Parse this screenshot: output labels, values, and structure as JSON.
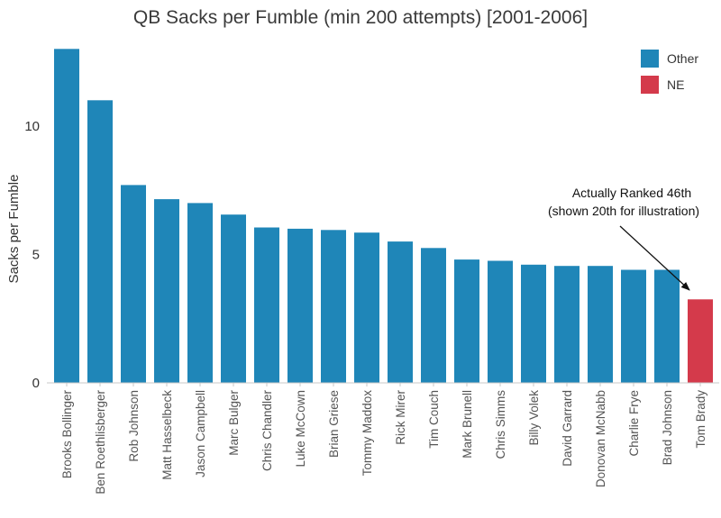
{
  "chart_data": {
    "type": "bar",
    "title": "QB Sacks per Fumble (min 200 attempts) [2001-2006]",
    "xlabel": "",
    "ylabel": "Sacks per Fumble",
    "ylim": [
      0,
      13.5
    ],
    "yticks": [
      0,
      5,
      10
    ],
    "categories": [
      "Brooks Bollinger",
      "Ben Roethlisberger",
      "Rob Johnson",
      "Matt Hasselbeck",
      "Jason Campbell",
      "Marc Bulger",
      "Chris Chandler",
      "Luke McCown",
      "Brian Griese",
      "Tommy Maddox",
      "Rick Mirer",
      "Tim Couch",
      "Mark Brunell",
      "Chris Simms",
      "Billy Volek",
      "David Garrard",
      "Donovan McNabb",
      "Charlie Frye",
      "Brad Johnson",
      "Tom Brady"
    ],
    "values": [
      13.0,
      11.0,
      7.7,
      7.15,
      7.0,
      6.55,
      6.05,
      6.0,
      5.95,
      5.85,
      5.5,
      5.25,
      4.8,
      4.75,
      4.6,
      4.55,
      4.55,
      4.4,
      4.4,
      3.25
    ],
    "groups": [
      "Other",
      "Other",
      "Other",
      "Other",
      "Other",
      "Other",
      "Other",
      "Other",
      "Other",
      "Other",
      "Other",
      "Other",
      "Other",
      "Other",
      "Other",
      "Other",
      "Other",
      "Other",
      "Other",
      "NE"
    ],
    "legend": {
      "placement": "top-right",
      "entries": [
        {
          "name": "Other",
          "color": "#1f86b8"
        },
        {
          "name": "NE",
          "color": "#d43a4b"
        }
      ]
    },
    "annotation": {
      "lines": [
        "Actually Ranked 46th",
        "(shown 20th for illustration)"
      ],
      "target": "Tom Brady"
    },
    "grid": false
  }
}
